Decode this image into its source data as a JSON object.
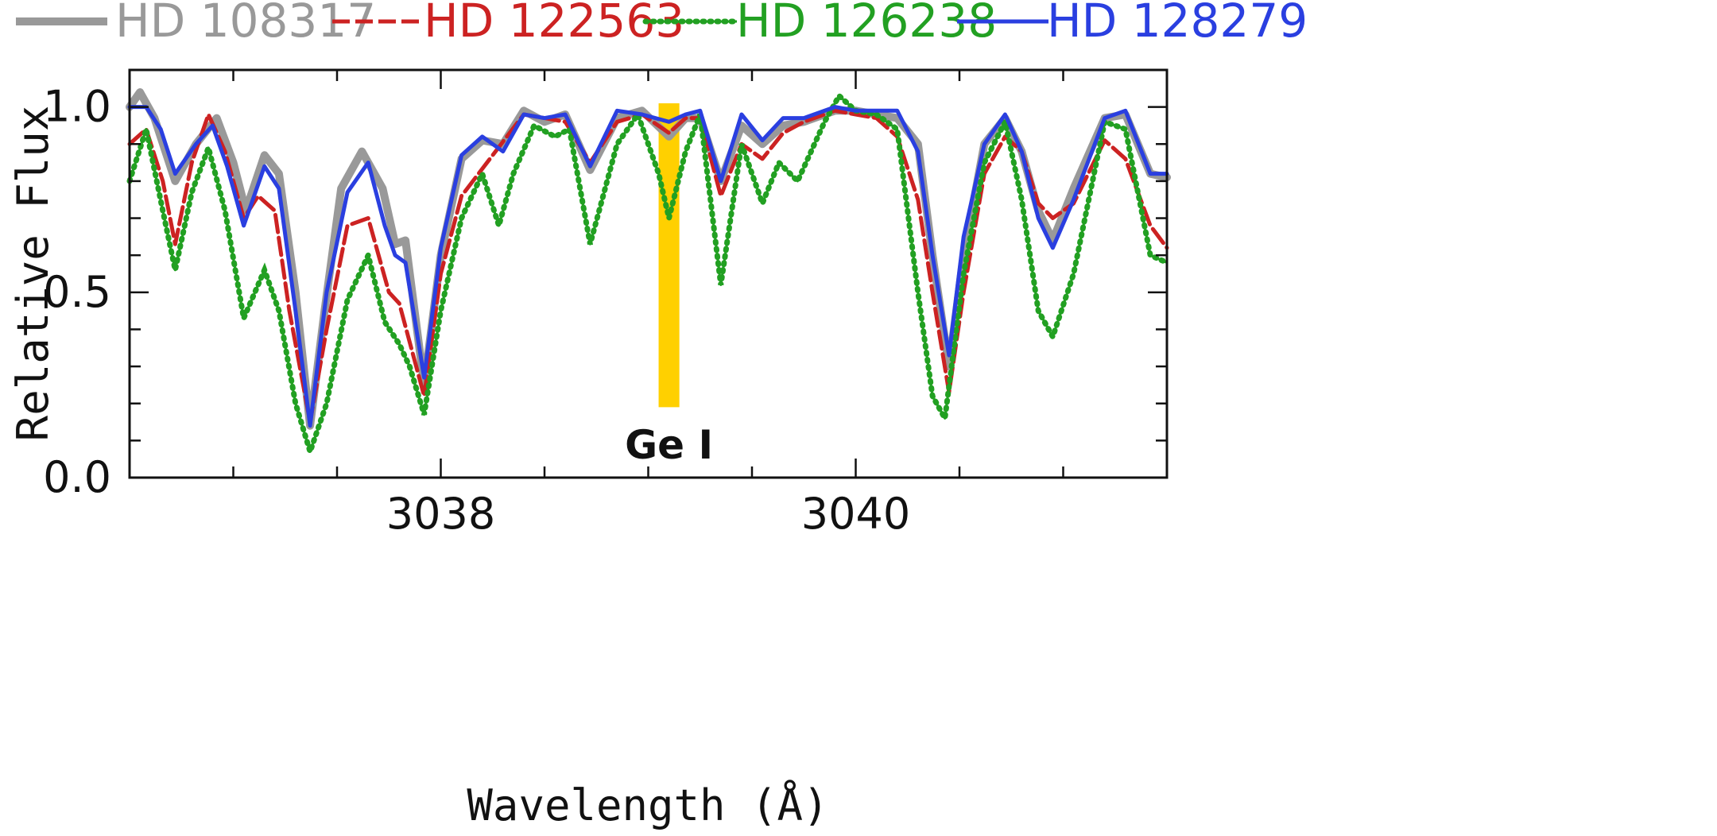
{
  "chart_data": {
    "type": "line",
    "title": "",
    "xlabel": "Wavelength (Å)",
    "ylabel": "Relative Flux",
    "xlim": [
      3036.5,
      3041.5
    ],
    "ylim": [
      0.0,
      1.1
    ],
    "x_ticks": [
      3038,
      3040
    ],
    "x_tick_labels": [
      "3038",
      "3040"
    ],
    "x_minor_step": 0.5,
    "y_ticks": [
      0.0,
      0.5,
      1.0
    ],
    "y_tick_labels": [
      "0.0",
      "0.5",
      "1.0"
    ],
    "y_minor_step": 0.1,
    "grid": false,
    "legend_position": "top",
    "annotations": [
      {
        "label": "Ge I",
        "x": 3039.1,
        "band": [
          3039.05,
          3039.15
        ],
        "band_ymin": 0.19,
        "band_ymax": 1.01,
        "color": "#FFD000"
      }
    ],
    "series": [
      {
        "name": "HD 108317",
        "color": "#999999",
        "style": "thick",
        "points": [
          [
            3036.5,
            1.0
          ],
          [
            3036.55,
            1.04
          ],
          [
            3036.62,
            0.97
          ],
          [
            3036.72,
            0.8
          ],
          [
            3036.82,
            0.9
          ],
          [
            3036.92,
            0.97
          ],
          [
            3037.0,
            0.85
          ],
          [
            3037.06,
            0.72
          ],
          [
            3037.15,
            0.87
          ],
          [
            3037.22,
            0.82
          ],
          [
            3037.3,
            0.5
          ],
          [
            3037.37,
            0.14
          ],
          [
            3037.44,
            0.45
          ],
          [
            3037.52,
            0.78
          ],
          [
            3037.62,
            0.88
          ],
          [
            3037.72,
            0.78
          ],
          [
            3037.78,
            0.63
          ],
          [
            3037.83,
            0.64
          ],
          [
            3037.92,
            0.25
          ],
          [
            3038.0,
            0.6
          ],
          [
            3038.1,
            0.86
          ],
          [
            3038.2,
            0.91
          ],
          [
            3038.3,
            0.9
          ],
          [
            3038.4,
            0.99
          ],
          [
            3038.5,
            0.96
          ],
          [
            3038.6,
            0.98
          ],
          [
            3038.72,
            0.83
          ],
          [
            3038.85,
            0.97
          ],
          [
            3038.97,
            0.99
          ],
          [
            3039.1,
            0.92
          ],
          [
            3039.18,
            0.97
          ],
          [
            3039.25,
            0.97
          ],
          [
            3039.35,
            0.8
          ],
          [
            3039.45,
            0.95
          ],
          [
            3039.55,
            0.9
          ],
          [
            3039.65,
            0.95
          ],
          [
            3039.75,
            0.96
          ],
          [
            3039.9,
            0.99
          ],
          [
            3040.0,
            0.99
          ],
          [
            3040.1,
            0.98
          ],
          [
            3040.2,
            0.97
          ],
          [
            3040.3,
            0.9
          ],
          [
            3040.37,
            0.6
          ],
          [
            3040.45,
            0.3
          ],
          [
            3040.52,
            0.6
          ],
          [
            3040.62,
            0.9
          ],
          [
            3040.72,
            0.97
          ],
          [
            3040.8,
            0.88
          ],
          [
            3040.88,
            0.72
          ],
          [
            3040.95,
            0.64
          ],
          [
            3041.05,
            0.78
          ],
          [
            3041.2,
            0.97
          ],
          [
            3041.3,
            0.98
          ],
          [
            3041.42,
            0.82
          ],
          [
            3041.5,
            0.81
          ]
        ]
      },
      {
        "name": "HD 122563",
        "color": "#CC2222",
        "style": "dashed",
        "points": [
          [
            3036.5,
            0.9
          ],
          [
            3036.58,
            0.94
          ],
          [
            3036.66,
            0.8
          ],
          [
            3036.72,
            0.63
          ],
          [
            3036.8,
            0.85
          ],
          [
            3036.88,
            0.98
          ],
          [
            3036.96,
            0.88
          ],
          [
            3037.05,
            0.7
          ],
          [
            3037.12,
            0.76
          ],
          [
            3037.2,
            0.72
          ],
          [
            3037.27,
            0.45
          ],
          [
            3037.37,
            0.15
          ],
          [
            3037.45,
            0.4
          ],
          [
            3037.55,
            0.68
          ],
          [
            3037.65,
            0.7
          ],
          [
            3037.75,
            0.5
          ],
          [
            3037.8,
            0.47
          ],
          [
            3037.92,
            0.22
          ],
          [
            3038.0,
            0.55
          ],
          [
            3038.1,
            0.76
          ],
          [
            3038.25,
            0.87
          ],
          [
            3038.4,
            0.98
          ],
          [
            3038.5,
            0.97
          ],
          [
            3038.6,
            0.96
          ],
          [
            3038.72,
            0.85
          ],
          [
            3038.85,
            0.96
          ],
          [
            3038.97,
            0.98
          ],
          [
            3039.1,
            0.93
          ],
          [
            3039.18,
            0.97
          ],
          [
            3039.25,
            0.97
          ],
          [
            3039.35,
            0.76
          ],
          [
            3039.45,
            0.9
          ],
          [
            3039.55,
            0.86
          ],
          [
            3039.65,
            0.93
          ],
          [
            3039.75,
            0.96
          ],
          [
            3039.9,
            0.99
          ],
          [
            3040.0,
            0.98
          ],
          [
            3040.1,
            0.97
          ],
          [
            3040.2,
            0.92
          ],
          [
            3040.3,
            0.75
          ],
          [
            3040.37,
            0.5
          ],
          [
            3040.45,
            0.23
          ],
          [
            3040.52,
            0.5
          ],
          [
            3040.62,
            0.82
          ],
          [
            3040.72,
            0.92
          ],
          [
            3040.8,
            0.88
          ],
          [
            3040.88,
            0.74
          ],
          [
            3040.95,
            0.7
          ],
          [
            3041.05,
            0.74
          ],
          [
            3041.2,
            0.91
          ],
          [
            3041.3,
            0.86
          ],
          [
            3041.42,
            0.68
          ],
          [
            3041.5,
            0.62
          ]
        ]
      },
      {
        "name": "HD 126238",
        "color": "#22A022",
        "style": "dotted",
        "points": [
          [
            3036.5,
            0.8
          ],
          [
            3036.58,
            0.94
          ],
          [
            3036.66,
            0.72
          ],
          [
            3036.72,
            0.56
          ],
          [
            3036.8,
            0.77
          ],
          [
            3036.88,
            0.89
          ],
          [
            3036.96,
            0.72
          ],
          [
            3037.05,
            0.43
          ],
          [
            3037.15,
            0.56
          ],
          [
            3037.22,
            0.45
          ],
          [
            3037.3,
            0.2
          ],
          [
            3037.37,
            0.07
          ],
          [
            3037.45,
            0.2
          ],
          [
            3037.55,
            0.48
          ],
          [
            3037.65,
            0.6
          ],
          [
            3037.73,
            0.42
          ],
          [
            3037.8,
            0.36
          ],
          [
            3037.85,
            0.3
          ],
          [
            3037.92,
            0.17
          ],
          [
            3038.0,
            0.45
          ],
          [
            3038.1,
            0.7
          ],
          [
            3038.2,
            0.82
          ],
          [
            3038.28,
            0.68
          ],
          [
            3038.35,
            0.82
          ],
          [
            3038.45,
            0.95
          ],
          [
            3038.55,
            0.92
          ],
          [
            3038.62,
            0.94
          ],
          [
            3038.72,
            0.63
          ],
          [
            3038.85,
            0.9
          ],
          [
            3038.95,
            0.98
          ],
          [
            3039.05,
            0.82
          ],
          [
            3039.1,
            0.7
          ],
          [
            3039.18,
            0.88
          ],
          [
            3039.25,
            0.98
          ],
          [
            3039.35,
            0.52
          ],
          [
            3039.45,
            0.9
          ],
          [
            3039.55,
            0.74
          ],
          [
            3039.63,
            0.85
          ],
          [
            3039.72,
            0.8
          ],
          [
            3039.85,
            0.96
          ],
          [
            3039.92,
            1.03
          ],
          [
            3040.0,
            0.99
          ],
          [
            3040.1,
            0.98
          ],
          [
            3040.2,
            0.94
          ],
          [
            3040.3,
            0.5
          ],
          [
            3040.37,
            0.22
          ],
          [
            3040.43,
            0.16
          ],
          [
            3040.52,
            0.55
          ],
          [
            3040.62,
            0.85
          ],
          [
            3040.72,
            0.96
          ],
          [
            3040.8,
            0.75
          ],
          [
            3040.88,
            0.45
          ],
          [
            3040.95,
            0.38
          ],
          [
            3041.05,
            0.55
          ],
          [
            3041.2,
            0.96
          ],
          [
            3041.3,
            0.94
          ],
          [
            3041.42,
            0.6
          ],
          [
            3041.5,
            0.58
          ]
        ]
      },
      {
        "name": "HD 128279",
        "color": "#2A3FE0",
        "style": "solid",
        "points": [
          [
            3036.5,
            1.0
          ],
          [
            3036.58,
            1.0
          ],
          [
            3036.65,
            0.94
          ],
          [
            3036.72,
            0.82
          ],
          [
            3036.82,
            0.9
          ],
          [
            3036.9,
            0.95
          ],
          [
            3036.97,
            0.84
          ],
          [
            3037.05,
            0.68
          ],
          [
            3037.15,
            0.84
          ],
          [
            3037.22,
            0.78
          ],
          [
            3037.3,
            0.45
          ],
          [
            3037.37,
            0.14
          ],
          [
            3037.45,
            0.5
          ],
          [
            3037.55,
            0.77
          ],
          [
            3037.65,
            0.85
          ],
          [
            3037.73,
            0.68
          ],
          [
            3037.78,
            0.6
          ],
          [
            3037.83,
            0.58
          ],
          [
            3037.92,
            0.27
          ],
          [
            3038.0,
            0.62
          ],
          [
            3038.1,
            0.87
          ],
          [
            3038.2,
            0.92
          ],
          [
            3038.3,
            0.88
          ],
          [
            3038.4,
            0.98
          ],
          [
            3038.5,
            0.97
          ],
          [
            3038.6,
            0.98
          ],
          [
            3038.72,
            0.84
          ],
          [
            3038.85,
            0.99
          ],
          [
            3038.97,
            0.98
          ],
          [
            3039.1,
            0.96
          ],
          [
            3039.18,
            0.98
          ],
          [
            3039.25,
            0.99
          ],
          [
            3039.35,
            0.8
          ],
          [
            3039.45,
            0.98
          ],
          [
            3039.55,
            0.91
          ],
          [
            3039.65,
            0.97
          ],
          [
            3039.75,
            0.97
          ],
          [
            3039.9,
            1.0
          ],
          [
            3040.0,
            0.99
          ],
          [
            3040.1,
            0.99
          ],
          [
            3040.2,
            0.99
          ],
          [
            3040.3,
            0.88
          ],
          [
            3040.37,
            0.6
          ],
          [
            3040.45,
            0.33
          ],
          [
            3040.52,
            0.65
          ],
          [
            3040.62,
            0.9
          ],
          [
            3040.72,
            0.98
          ],
          [
            3040.8,
            0.88
          ],
          [
            3040.88,
            0.7
          ],
          [
            3040.95,
            0.62
          ],
          [
            3041.05,
            0.75
          ],
          [
            3041.2,
            0.97
          ],
          [
            3041.3,
            0.99
          ],
          [
            3041.42,
            0.82
          ],
          [
            3041.5,
            0.82
          ]
        ]
      }
    ]
  }
}
